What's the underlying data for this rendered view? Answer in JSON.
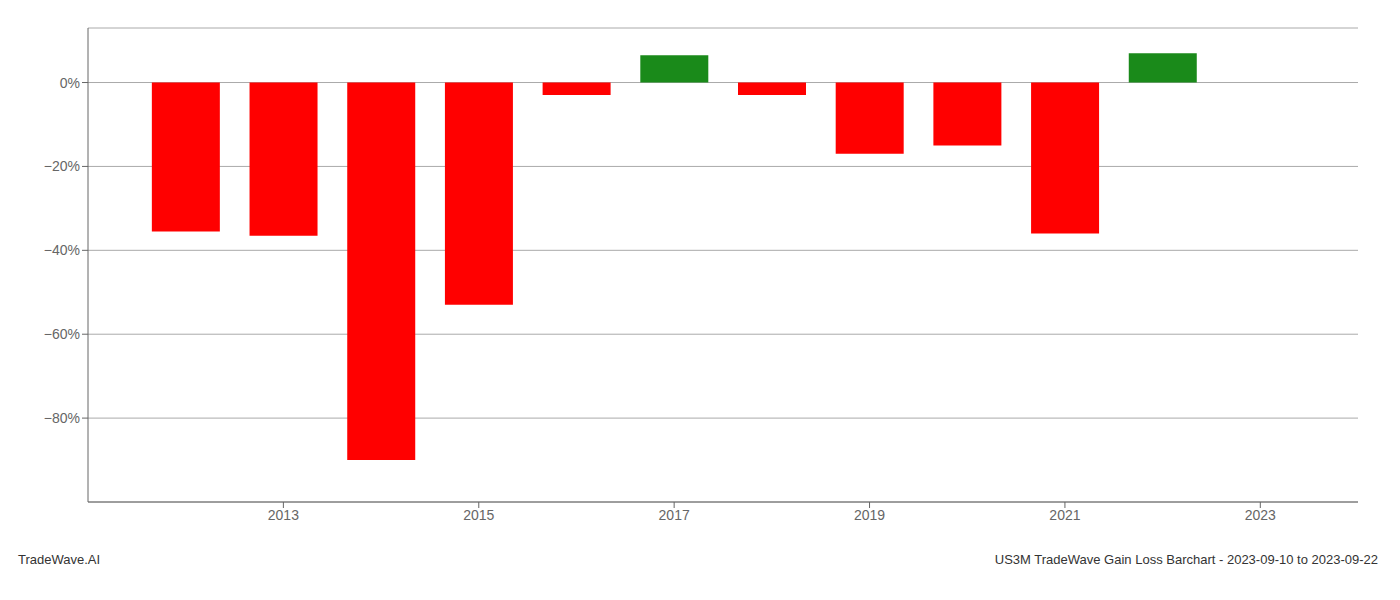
{
  "chart_data": {
    "type": "bar",
    "x": [
      2012,
      2013,
      2014,
      2015,
      2016,
      2017,
      2018,
      2019,
      2020,
      2021,
      2022
    ],
    "values": [
      -0.355,
      -0.365,
      -0.9,
      -0.53,
      -0.03,
      0.065,
      -0.03,
      -0.17,
      -0.15,
      -0.36,
      0.07
    ],
    "colors": [
      "#ff0000",
      "#ff0000",
      "#ff0000",
      "#ff0000",
      "#ff0000",
      "#1a8a1a",
      "#ff0000",
      "#ff0000",
      "#ff0000",
      "#ff0000",
      "#1a8a1a"
    ],
    "xlim": [
      2011.0,
      2024.0
    ],
    "xticks": [
      2013,
      2015,
      2017,
      2019,
      2021,
      2023
    ],
    "ylim": [
      -1.0,
      0.13
    ],
    "yticks": [
      {
        "value": 0.0,
        "label": "0%"
      },
      {
        "value": -0.2,
        "label": "−20%"
      },
      {
        "value": -0.4,
        "label": "−40%"
      },
      {
        "value": -0.6,
        "label": "−60%"
      },
      {
        "value": -0.8,
        "label": "−80%"
      }
    ],
    "grid": true,
    "annotations": [
      "TradeWave.AI",
      "US3M TradeWave Gain Loss Barchart - 2023-09-10 to 2023-09-22"
    ]
  }
}
